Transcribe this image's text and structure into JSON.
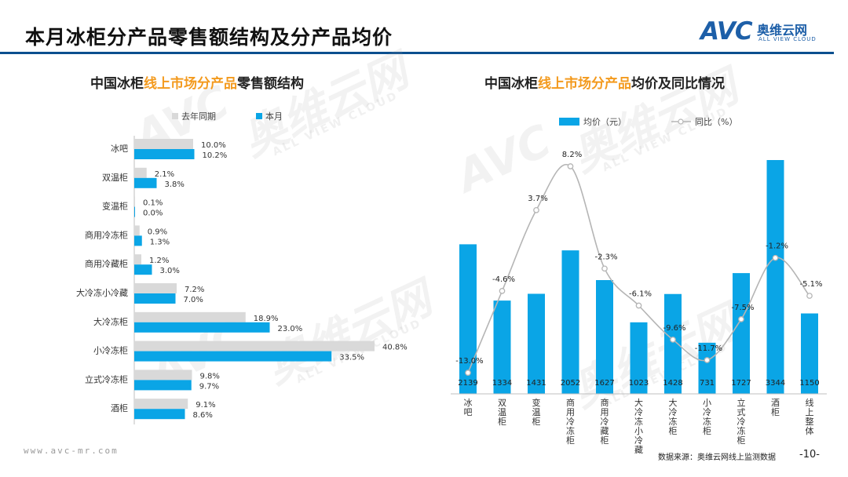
{
  "header": {
    "title": "本月冰柜分产品零售额结构及分产品均价",
    "logo_mark": "AVC",
    "logo_cn": "奥维云网",
    "logo_en": "ALL VIEW CLOUD"
  },
  "watermark": {
    "mark": "AVC",
    "cn": "奥维云网",
    "en": "ALL VIEW CLOUD"
  },
  "left_chart": {
    "title_pre": "中国冰柜",
    "title_hl": "线上市场分产品",
    "title_post": "零售额结构"
  },
  "right_chart": {
    "title_pre": "中国冰柜",
    "title_hl": "线上市场分产品",
    "title_post": "均价及同比情况"
  },
  "chart_data": [
    {
      "type": "bar",
      "orientation": "horizontal",
      "categories": [
        "冰吧",
        "双温柜",
        "变温柜",
        "商用冷冻柜",
        "商用冷藏柜",
        "大冷冻小冷藏",
        "大冷冻柜",
        "小冷冻柜",
        "立式冷冻柜",
        "酒柜"
      ],
      "series": [
        {
          "name": "去年同期",
          "values": [
            10.0,
            2.1,
            0.1,
            0.9,
            1.2,
            7.2,
            18.9,
            40.8,
            9.8,
            9.1
          ],
          "color": "#d9d9d9"
        },
        {
          "name": "本月",
          "values": [
            10.2,
            3.8,
            0.0,
            1.3,
            3.0,
            7.0,
            23.0,
            33.5,
            9.7,
            8.6
          ],
          "color": "#0aa5e6"
        }
      ],
      "value_suffix": "%",
      "xlim": [
        0,
        45
      ],
      "legend": "top-left",
      "grid": false
    },
    {
      "type": "bar+line",
      "categories": [
        "冰吧",
        "双温柜",
        "变温柜",
        "商用冷冻柜",
        "商用冷藏柜",
        "大冷冻小冷藏",
        "大冷冻柜",
        "小冷冻柜",
        "立式冷冻柜",
        "酒柜",
        "线上整体"
      ],
      "series": [
        {
          "name": "均价（元）",
          "type": "bar",
          "values": [
            2139,
            1334,
            1431,
            2052,
            1627,
            1023,
            1428,
            731,
            1727,
            3344,
            1150
          ],
          "color": "#0aa5e6"
        },
        {
          "name": "同比（%）",
          "type": "line",
          "values": [
            -13.0,
            -4.6,
            3.7,
            8.2,
            -2.3,
            -6.1,
            -9.6,
            -11.7,
            -7.5,
            -1.2,
            -5.1
          ],
          "color": "#b5b5b5"
        }
      ],
      "value_suffix_line": "%",
      "bar_ylim": [
        0,
        3400
      ],
      "line_ylim": [
        -14,
        9
      ],
      "legend": "top",
      "grid": false
    }
  ],
  "footer": {
    "url": "www.avc-mr.com",
    "source": "数据来源：奥维云网线上监测数据",
    "page": "-10-"
  }
}
